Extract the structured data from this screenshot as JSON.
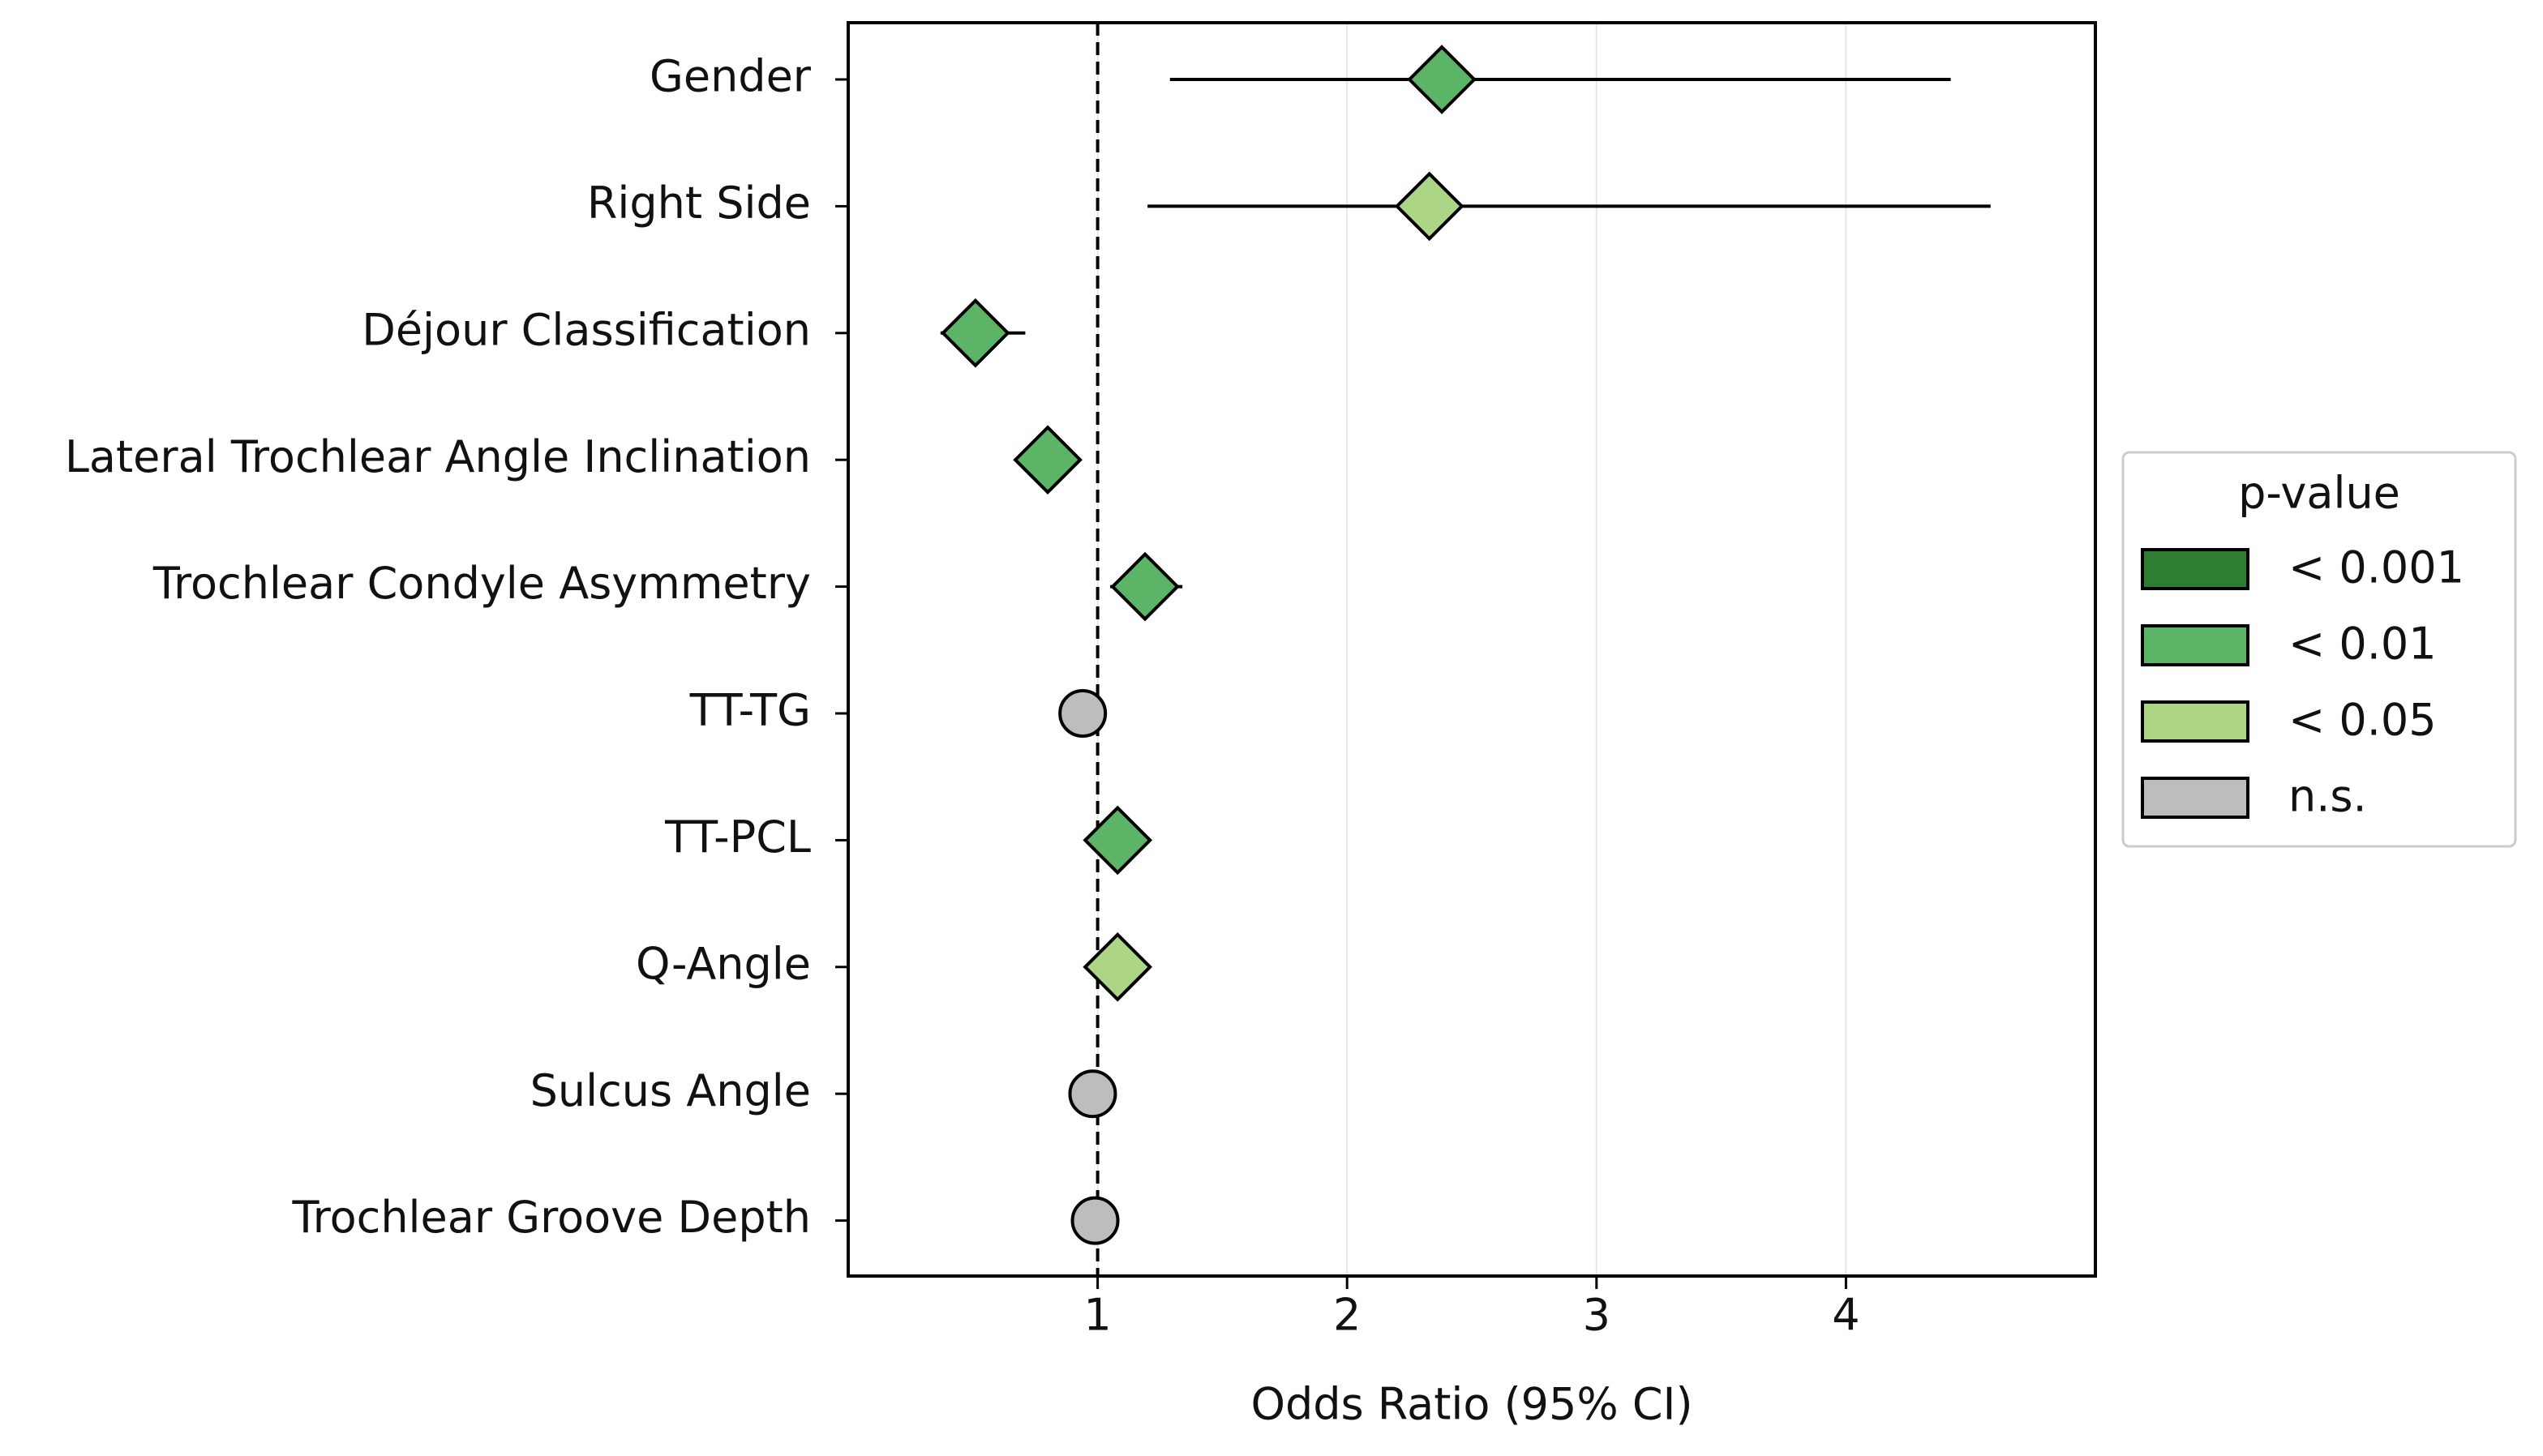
{
  "chart_data": {
    "type": "forest",
    "xlabel": "Odds Ratio (95% CI)",
    "categories": [
      "Gender",
      "Right Side",
      "Déjour Classification",
      "Lateral Trochlear Angle Inclination",
      "Trochlear Condyle Asymmetry",
      "TT-TG",
      "TT-PCL",
      "Q-Angle",
      "Sulcus Angle",
      "Trochlear Groove Depth"
    ],
    "values": [
      2.38,
      2.33,
      0.51,
      0.8,
      1.19,
      0.94,
      1.08,
      1.08,
      0.98,
      0.99
    ],
    "ci_low": [
      1.29,
      1.2,
      0.37,
      0.76,
      1.05,
      0.92,
      1.03,
      1.02,
      0.96,
      0.97
    ],
    "ci_high": [
      4.42,
      4.58,
      0.71,
      0.84,
      1.34,
      0.97,
      1.14,
      1.14,
      1.0,
      1.02
    ],
    "colors": [
      "#5cb567",
      "#acd686",
      "#5cb567",
      "#5cb567",
      "#5cb567",
      "#bdbdbd",
      "#5cb567",
      "#acd686",
      "#bdbdbd",
      "#bdbdbd"
    ],
    "markers": [
      "diamond",
      "diamond",
      "diamond",
      "diamond",
      "diamond",
      "circle",
      "diamond",
      "diamond",
      "circle",
      "circle"
    ],
    "reference_line": 1,
    "xlim": [
      0,
      5
    ],
    "xticks": [
      1,
      2,
      3,
      4
    ],
    "grid": true,
    "legend": {
      "title": "p-value",
      "items": [
        {
          "label": "< 0.001",
          "color": "#2e7d32"
        },
        {
          "label": "< 0.01",
          "color": "#5cb567"
        },
        {
          "label": "< 0.05",
          "color": "#acd686"
        },
        {
          "label": "n.s.",
          "color": "#bdbdbd"
        }
      ]
    }
  }
}
